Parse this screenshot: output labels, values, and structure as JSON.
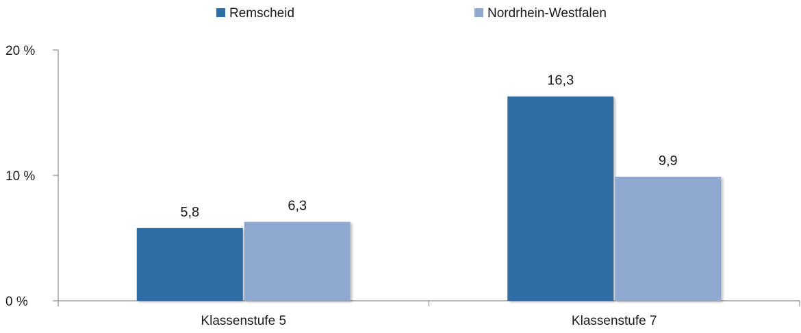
{
  "chart_data": {
    "type": "bar",
    "categories": [
      "Klassenstufe 5",
      "Klassenstufe 7"
    ],
    "series": [
      {
        "name": "Remscheid",
        "values": [
          5.8,
          16.3
        ],
        "labels": [
          "5,8",
          "16,3"
        ],
        "color": "#2e6ca4"
      },
      {
        "name": "Nordrhein-Westfalen",
        "values": [
          6.3,
          9.9
        ],
        "labels": [
          "6,3",
          "9,9"
        ],
        "color": "#8fa8d0"
      }
    ],
    "ylim": [
      0,
      20
    ],
    "yticks": [
      0,
      10,
      20
    ],
    "ytick_labels": [
      "0 %",
      "10 %",
      "20 %"
    ],
    "grid": false,
    "legend_position": "top-center"
  }
}
